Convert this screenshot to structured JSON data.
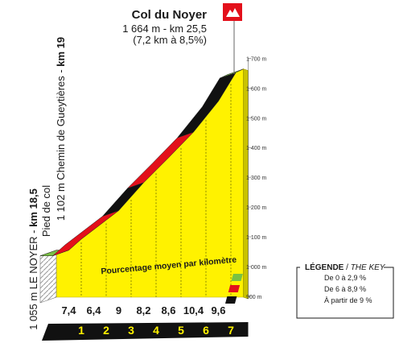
{
  "summit": {
    "name": "Col du Noyer",
    "line1": "1 664 m - km 25,5",
    "line2": "(7,2 km à 8,5%)"
  },
  "start_labels": {
    "left_bold": "km 18,5",
    "left_prefix": "1 055 m LE NOYER - ",
    "middle": "Pied de col",
    "right_prefix": "1 102 m Chemin de Gueytières - ",
    "right_bold": "km 19"
  },
  "legend": {
    "title": "LÉGENDE",
    "title_en": "THE KEY",
    "items": [
      {
        "label": "De 0 à 2,9 %",
        "color": "#7ac143"
      },
      {
        "label": "De 6 à 8,9 %",
        "color": "#e3101b"
      },
      {
        "label": "À partir de 9 %",
        "color": "#111111"
      }
    ]
  },
  "colors": {
    "fill": "#fff200",
    "side": "#c9c200",
    "green": "#7ac143",
    "red": "#e3101b",
    "black": "#111111",
    "flag": "#e3101b"
  },
  "chart_data": {
    "type": "area",
    "title": "Col du Noyer",
    "average_label": "Pourcentage moyen par kilomètre",
    "yunit": "m",
    "ylim": [
      900,
      1700
    ],
    "yticks": [
      {
        "value": 900,
        "label": "900 m"
      },
      {
        "value": 1000,
        "label": "1 000 m"
      },
      {
        "value": 1100,
        "label": "1 100 m"
      },
      {
        "value": 1200,
        "label": "1 200 m"
      },
      {
        "value": 1300,
        "label": "1 300 m"
      },
      {
        "value": 1400,
        "label": "1 400 m"
      },
      {
        "value": 1500,
        "label": "1 500 m"
      },
      {
        "value": 1600,
        "label": "1 600 m"
      },
      {
        "value": 1700,
        "label": "1 700 m"
      }
    ],
    "km_labels": [
      "1",
      "2",
      "3",
      "4",
      "5",
      "6",
      "7"
    ],
    "gradients": [
      7.4,
      6.4,
      9,
      8.2,
      8.6,
      10.4,
      9.6
    ],
    "gradient_labels": [
      "7,4",
      "6,4",
      "9",
      "8,2",
      "8,6",
      "10,4",
      "9,6"
    ],
    "profile": [
      {
        "km": 0,
        "alt": 1055
      },
      {
        "km": 0.5,
        "alt": 1055
      },
      {
        "km": 1,
        "alt": 1092
      },
      {
        "km": 2.5,
        "alt": 1188
      },
      {
        "km": 3.5,
        "alt": 1282
      },
      {
        "km": 4.5,
        "alt": 1366
      },
      {
        "km": 5.5,
        "alt": 1452
      },
      {
        "km": 6.5,
        "alt": 1556
      },
      {
        "km": 7.2,
        "alt": 1652
      },
      {
        "km": 7.5,
        "alt": 1664
      }
    ],
    "segments": [
      {
        "from": 0,
        "to": 0.5,
        "color": "green"
      },
      {
        "from": 0.5,
        "to": 2.5,
        "color": "red"
      },
      {
        "from": 2.5,
        "to": 3.5,
        "color": "black"
      },
      {
        "from": 3.5,
        "to": 5.5,
        "color": "red"
      },
      {
        "from": 5.5,
        "to": 7.2,
        "color": "black"
      },
      {
        "from": 7.2,
        "to": 7.5,
        "color": "green"
      }
    ]
  }
}
